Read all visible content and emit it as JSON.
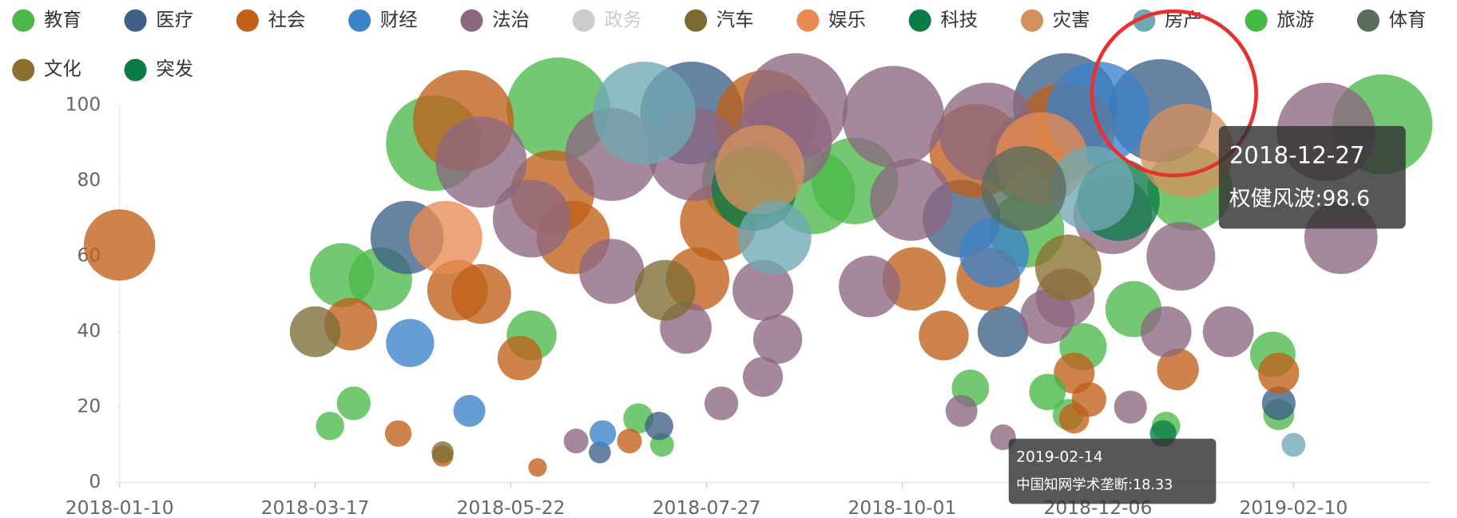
{
  "chart_data": {
    "type": "scatter",
    "xlim": [
      "2018-01-10",
      "2019-03-28"
    ],
    "xticks": [
      "2018-01-10",
      "2018-03-17",
      "2018-05-22",
      "2018-07-27",
      "2018-10-01",
      "2018-12-06",
      "2019-02-10"
    ],
    "ylim": [
      0,
      100
    ],
    "yticks": [
      0,
      20,
      40,
      60,
      80,
      100
    ],
    "grid": false,
    "legend": "top",
    "series": [
      {
        "name": "教育",
        "color": "#4db849",
        "x": [
          "2018-03-26",
          "2018-04-08",
          "2018-03-30",
          "2018-03-22",
          "2018-04-26",
          "2018-05-29",
          "2018-06-07",
          "2018-07-04",
          "2018-07-12",
          "2018-08-09",
          "2018-09-01",
          "2018-09-15",
          "2018-10-24",
          "2018-11-12",
          "2018-11-26",
          "2018-12-01",
          "2018-12-18",
          "2018-12-29",
          "2019-01-06",
          "2019-02-03",
          "2019-02-05",
          "2019-03-12",
          "2018-11-14"
        ],
        "values": [
          55,
          54,
          21,
          15,
          90,
          39,
          99,
          17,
          10,
          80,
          77,
          80,
          25,
          67,
          18,
          36,
          46,
          15,
          78,
          34,
          18,
          95,
          86
        ]
      },
      {
        "name": "医疗",
        "color": "#3e5f86",
        "x": [
          "2018-04-17",
          "2018-07-22",
          "2018-07-11",
          "2018-06-21",
          "2018-10-21",
          "2018-11-04",
          "2018-11-25",
          "2018-12-27",
          "2019-02-05"
        ],
        "values": [
          65,
          98,
          15,
          8,
          70,
          40,
          100,
          98.6,
          21
        ]
      },
      {
        "name": "社会",
        "color": "#c0601a",
        "x": [
          "2018-01-10",
          "2018-03-29",
          "2018-04-14",
          "2018-04-29",
          "2018-05-06",
          "2018-05-04",
          "2018-05-12",
          "2018-05-25",
          "2018-05-31",
          "2018-06-05",
          "2018-06-12",
          "2018-07-01",
          "2018-07-24",
          "2018-07-31",
          "2018-08-16",
          "2018-10-05",
          "2018-10-15",
          "2018-10-26",
          "2018-10-30",
          "2018-11-28",
          "2018-11-28",
          "2018-12-03",
          "2019-01-02",
          "2019-02-05",
          "2018-11-25"
        ],
        "values": [
          63,
          42,
          13,
          7,
          96,
          51,
          50,
          33,
          4,
          77,
          65,
          11,
          54,
          69,
          96,
          54,
          39,
          88,
          54,
          29,
          17,
          22,
          30,
          29,
          93
        ]
      },
      {
        "name": "财经",
        "color": "#3c82c9",
        "x": [
          "2018-04-18",
          "2018-05-08",
          "2018-06-22",
          "2018-12-06",
          "2018-11-01"
        ],
        "values": [
          37,
          19,
          13,
          98,
          61
        ]
      },
      {
        "name": "法治",
        "color": "#8d6680",
        "x": [
          "2018-05-12",
          "2018-05-29",
          "2018-06-25",
          "2018-06-25",
          "2018-06-13",
          "2018-07-20",
          "2018-07-23",
          "2018-08-01",
          "2018-08-15",
          "2018-08-20",
          "2018-08-15",
          "2018-08-26",
          "2018-08-22",
          "2018-09-20",
          "2018-10-04",
          "2018-09-28",
          "2018-10-21",
          "2018-11-04",
          "2018-10-30",
          "2018-11-19",
          "2018-12-17",
          "2018-12-29",
          "2019-01-03",
          "2019-01-19",
          "2019-02-21",
          "2019-02-26",
          "2018-12-11",
          "2018-11-25"
        ],
        "values": [
          85,
          70,
          87,
          56,
          11,
          41,
          87,
          21,
          28,
          38,
          51,
          100,
          91,
          52,
          75,
          97,
          19,
          12,
          93,
          44,
          20,
          40,
          60,
          40,
          93,
          65,
          71,
          49
        ]
      },
      {
        "name": "政务",
        "color": "#cccccc",
        "visible": false,
        "x": [],
        "values": []
      },
      {
        "name": "汽车",
        "color": "#7d6b34",
        "x": [
          "2018-03-17",
          "2018-04-29",
          "2018-07-13"
        ],
        "values": [
          40,
          8,
          51
        ]
      },
      {
        "name": "娱乐",
        "color": "#e88a52",
        "x": [
          "2018-04-30",
          "2018-11-17"
        ],
        "values": [
          65,
          86
        ]
      },
      {
        "name": "科技",
        "color": "#0c7b48",
        "x": [
          "2018-08-12",
          "2018-12-13"
        ],
        "values": [
          78,
          75
        ]
      },
      {
        "name": "灾害",
        "color": "#d4915f",
        "x": [
          "2018-08-14",
          "2019-01-05"
        ],
        "values": [
          83,
          88
        ]
      },
      {
        "name": "房产",
        "color": "#6fa8b4",
        "x": [
          "2018-07-06",
          "2018-08-19",
          "2018-12-04",
          "2019-02-10"
        ],
        "values": [
          98,
          65,
          78,
          10
        ]
      },
      {
        "name": "旅游",
        "color": "#44b944",
        "x": [
          "2018-11-19"
        ],
        "values": [
          24
        ]
      },
      {
        "name": "体育",
        "color": "#5a6d5c",
        "x": [
          "2018-11-11"
        ],
        "values": [
          78
        ]
      },
      {
        "name": "文化",
        "color": "#8b6f2e",
        "x": [
          "2018-11-26"
        ],
        "values": [
          57
        ]
      },
      {
        "name": "突发",
        "color": "#0c7b48",
        "x": [
          "2018-12-28"
        ],
        "values": [
          13
        ]
      }
    ],
    "tooltips": [
      {
        "date": "2018-12-27",
        "text": "权健风波:98.6"
      },
      {
        "date": "2019-02-14",
        "text": "中国知网学术垄断:18.33"
      }
    ]
  }
}
